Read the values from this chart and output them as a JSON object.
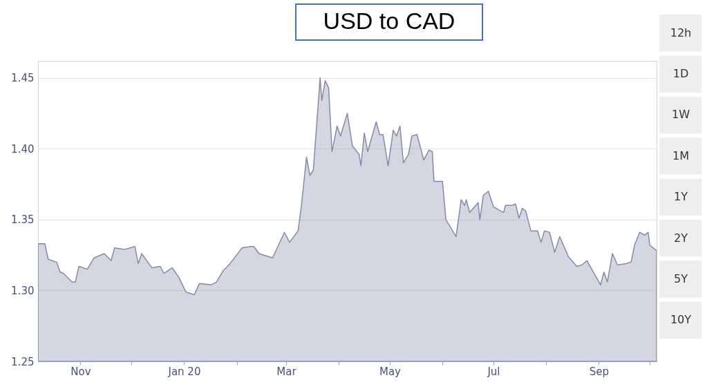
{
  "chart_data": {
    "type": "area",
    "title": "USD to CAD",
    "annotations": [
      "12h",
      "1D",
      "1W",
      "1M",
      "1Y",
      "2Y",
      "5Y",
      "10Y"
    ],
    "x": [
      "2019-10-07",
      "2019-10-11",
      "2019-10-13",
      "2019-10-18",
      "2019-10-20",
      "2019-10-22",
      "2019-10-27",
      "2019-10-29",
      "2019-10-31",
      "2019-11-05",
      "2019-11-09",
      "2019-11-15",
      "2019-11-19",
      "2019-11-21",
      "2019-11-27",
      "2019-12-03",
      "2019-12-05",
      "2019-12-07",
      "2019-12-13",
      "2019-12-18",
      "2019-12-20",
      "2019-12-25",
      "2019-12-29",
      "2020-01-02",
      "2020-01-07",
      "2020-01-10",
      "2020-01-17",
      "2020-01-20",
      "2020-01-24",
      "2020-01-28",
      "2020-02-04",
      "2020-02-09",
      "2020-02-11",
      "2020-02-14",
      "2020-02-22",
      "2020-02-29",
      "2020-03-03",
      "2020-03-08",
      "2020-03-10",
      "2020-03-13",
      "2020-03-15",
      "2020-03-17",
      "2020-03-21",
      "2020-03-22",
      "2020-03-24",
      "2020-03-26",
      "2020-03-28",
      "2020-03-31",
      "2020-04-02",
      "2020-04-06",
      "2020-04-09",
      "2020-04-13",
      "2020-04-14",
      "2020-04-16",
      "2020-04-18",
      "2020-04-23",
      "2020-04-25",
      "2020-04-27",
      "2020-04-30",
      "2020-05-03",
      "2020-05-05",
      "2020-05-07",
      "2020-05-09",
      "2020-05-12",
      "2020-05-14",
      "2020-05-17",
      "2020-05-21",
      "2020-05-24",
      "2020-05-26",
      "2020-05-27",
      "2020-06-01",
      "2020-06-03",
      "2020-06-09",
      "2020-06-12",
      "2020-06-14",
      "2020-06-15",
      "2020-06-17",
      "2020-06-22",
      "2020-06-23",
      "2020-06-25",
      "2020-06-28",
      "2020-07-01",
      "2020-07-07",
      "2020-07-08",
      "2020-07-12",
      "2020-07-14",
      "2020-07-16",
      "2020-07-18",
      "2020-07-20",
      "2020-07-23",
      "2020-07-27",
      "2020-07-29",
      "2020-07-31",
      "2020-08-03",
      "2020-08-06",
      "2020-08-09",
      "2020-08-14",
      "2020-08-19",
      "2020-08-22",
      "2020-08-25",
      "2020-09-02",
      "2020-09-04",
      "2020-09-06",
      "2020-09-09",
      "2020-09-12",
      "2020-09-17",
      "2020-09-20",
      "2020-09-22",
      "2020-09-25",
      "2020-09-28",
      "2020-09-30",
      "2020-10-01",
      "2020-10-05"
    ],
    "series": [
      {
        "color": "#8589a8",
        "values": [
          1.333,
          1.333,
          1.322,
          1.32,
          1.313,
          1.312,
          1.306,
          1.306,
          1.317,
          1.315,
          1.323,
          1.326,
          1.321,
          1.33,
          1.329,
          1.331,
          1.319,
          1.326,
          1.316,
          1.317,
          1.312,
          1.316,
          1.309,
          1.299,
          1.297,
          1.305,
          1.304,
          1.306,
          1.314,
          1.319,
          1.33,
          1.331,
          1.331,
          1.326,
          1.323,
          1.341,
          1.334,
          1.342,
          1.36,
          1.394,
          1.381,
          1.385,
          1.45,
          1.434,
          1.448,
          1.443,
          1.398,
          1.416,
          1.409,
          1.425,
          1.402,
          1.396,
          1.388,
          1.411,
          1.398,
          1.419,
          1.41,
          1.41,
          1.388,
          1.413,
          1.409,
          1.416,
          1.39,
          1.396,
          1.409,
          1.41,
          1.392,
          1.399,
          1.398,
          1.377,
          1.377,
          1.35,
          1.338,
          1.364,
          1.36,
          1.364,
          1.355,
          1.362,
          1.35,
          1.367,
          1.37,
          1.359,
          1.355,
          1.36,
          1.36,
          1.361,
          1.351,
          1.358,
          1.356,
          1.342,
          1.342,
          1.334,
          1.342,
          1.341,
          1.327,
          1.338,
          1.324,
          1.317,
          1.318,
          1.321,
          1.304,
          1.313,
          1.306,
          1.326,
          1.318,
          1.319,
          1.32,
          1.332,
          1.341,
          1.339,
          1.341,
          1.332,
          1.328
        ]
      }
    ],
    "xlim": [
      "2019-10-07",
      "2020-10-05"
    ],
    "xticks": [
      {
        "value": "2019-11-01",
        "label": "Nov"
      },
      {
        "value": "2019-12-01",
        "label": null
      },
      {
        "value": "2020-01-01",
        "label": "Jan 20"
      },
      {
        "value": "2020-02-01",
        "label": null
      },
      {
        "value": "2020-03-01",
        "label": "Mar"
      },
      {
        "value": "2020-04-01",
        "label": null
      },
      {
        "value": "2020-05-01",
        "label": "May"
      },
      {
        "value": "2020-06-01",
        "label": null
      },
      {
        "value": "2020-07-01",
        "label": "Jul"
      },
      {
        "value": "2020-08-01",
        "label": null
      },
      {
        "value": "2020-09-01",
        "label": "Sep"
      },
      {
        "value": "2020-10-01",
        "label": null
      }
    ],
    "ylim": [
      1.25,
      1.462
    ],
    "yticks": [
      {
        "value": 1.25,
        "label": "1.25"
      },
      {
        "value": 1.3,
        "label": "1.30"
      },
      {
        "value": 1.35,
        "label": "1.35"
      },
      {
        "value": 1.4,
        "label": "1.40"
      },
      {
        "value": 1.45,
        "label": "1.45"
      }
    ],
    "grid": "y"
  }
}
